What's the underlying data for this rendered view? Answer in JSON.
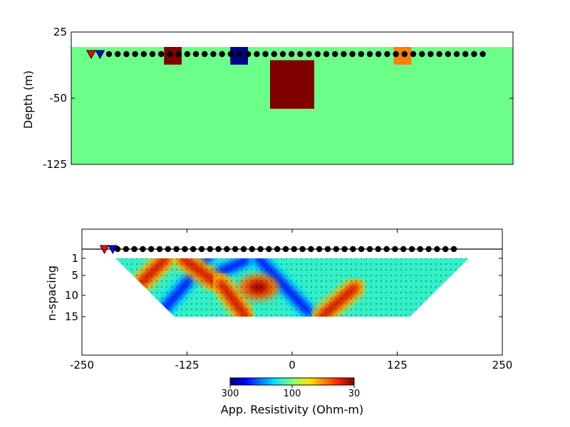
{
  "chart_data": [
    {
      "type": "heatmap",
      "title": "",
      "xlabel": "",
      "ylabel": "Depth (m)",
      "xlim": [
        -250,
        250
      ],
      "ylim": [
        -125,
        25
      ],
      "yticks": [
        25,
        -50,
        -125
      ],
      "ytick_labels": [
        "25",
        "-50",
        "-125"
      ],
      "surface_depth": 0,
      "background": {
        "name": "background",
        "color": "#6bff8a"
      },
      "blocks": [
        {
          "name": "block-1",
          "x": [
            -145,
            -125
          ],
          "y": [
            -20,
            0
          ],
          "color": "#800000"
        },
        {
          "name": "block-2",
          "x": [
            -70,
            -50
          ],
          "y": [
            -20,
            0
          ],
          "color": "#00008b"
        },
        {
          "name": "block-3",
          "x": [
            -25,
            25
          ],
          "y": [
            -70,
            -15
          ],
          "color": "#800000"
        },
        {
          "name": "block-4",
          "x": [
            115,
            135
          ],
          "y": [
            -20,
            0
          ],
          "color": "#ff7f00"
        }
      ],
      "source_electrodes": [
        {
          "name": "A",
          "x": -250,
          "color": "#ff0000"
        },
        {
          "name": "B",
          "x": -240,
          "color": "#0000ff"
        }
      ],
      "receiver_electrodes_x": [
        -230,
        -220,
        -210,
        -200,
        -190,
        -180,
        -170,
        -160,
        -150,
        -140,
        -130,
        -120,
        -110,
        -100,
        -90,
        -80,
        -70,
        -60,
        -50,
        -40,
        -30,
        -20,
        -10,
        0,
        10,
        20,
        30,
        40,
        50,
        60,
        70,
        80,
        90,
        100,
        110,
        120,
        130,
        140,
        150,
        160,
        170,
        180,
        190,
        200
      ]
    },
    {
      "type": "heatmap",
      "title": "",
      "xlabel": "",
      "ylabel": "n-spacing",
      "xlim": [
        -250,
        250
      ],
      "xticks": [
        -250,
        -125,
        0,
        125,
        250
      ],
      "xtick_labels": [
        "-250",
        "-125",
        "0",
        "125",
        "250"
      ],
      "ytick_labels": [
        "1",
        "5",
        "10",
        "15"
      ],
      "n_values": [
        1,
        5,
        10,
        15
      ],
      "pseudosection_extent": {
        "top_x": [
          -210,
          210
        ],
        "bottom_x": [
          -140,
          140
        ]
      },
      "source_electrodes": [
        {
          "name": "A",
          "x": -225,
          "color": "#ff0000"
        },
        {
          "name": "B",
          "x": -215,
          "color": "#0000ff"
        }
      ],
      "receiver_electrodes_x": [
        -205,
        -195,
        -185,
        -175,
        -165,
        -155,
        -145,
        -135,
        -125,
        -115,
        -105,
        -95,
        -85,
        -75,
        -65,
        -55,
        -45,
        -35,
        -25,
        -15,
        -5,
        5,
        15,
        25,
        35,
        45,
        55,
        65,
        75,
        85,
        95,
        105,
        115,
        125,
        135,
        145,
        155,
        165,
        175,
        185,
        195
      ],
      "features": [
        {
          "name": "low-band-1",
          "kind": "low",
          "x1": -160,
          "n1": 15,
          "x2": -100,
          "n2": 1
        },
        {
          "name": "low-band-2",
          "kind": "low",
          "x1": -105,
          "n1": 6,
          "x2": -50,
          "n2": 1
        },
        {
          "name": "low-band-3",
          "kind": "low",
          "x1": -40,
          "n1": 1,
          "x2": 20,
          "n2": 14
        },
        {
          "name": "high-band-1",
          "kind": "high",
          "x1": -180,
          "n1": 7,
          "x2": -150,
          "n2": 1
        },
        {
          "name": "high-band-2",
          "kind": "high",
          "x1": -130,
          "n1": 1,
          "x2": -90,
          "n2": 7
        },
        {
          "name": "high-band-3",
          "kind": "high",
          "x1": -85,
          "n1": 7,
          "x2": -55,
          "n2": 15
        },
        {
          "name": "high-band-4",
          "kind": "high",
          "x1": 35,
          "n1": 15,
          "x2": 75,
          "n2": 8
        },
        {
          "name": "high-blob-1",
          "kind": "high-spot",
          "x": -40,
          "n": 8
        }
      ],
      "colorbar": {
        "label": "App. Resistivity (Ohm-m)",
        "tick_labels": [
          "300",
          "100",
          "30"
        ],
        "colormap": "jet"
      }
    }
  ]
}
